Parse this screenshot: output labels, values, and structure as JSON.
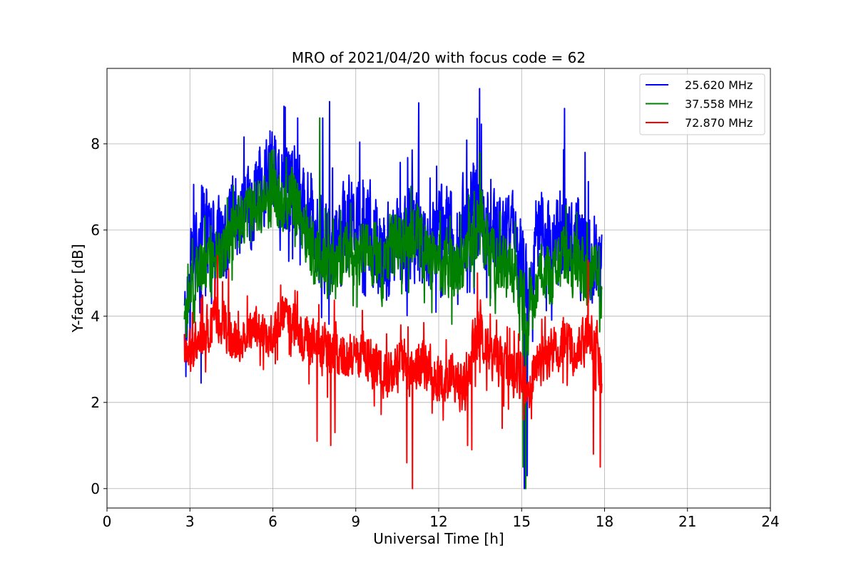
{
  "chart_data": {
    "type": "line",
    "title": "MRO of 2021/04/20 with focus code = 62",
    "xlabel": "Universal Time [h]",
    "ylabel": "Y-factor [dB]",
    "xlim": [
      0,
      24
    ],
    "ylim": [
      -0.45,
      9.75
    ],
    "xticks": [
      0,
      3,
      6,
      9,
      12,
      15,
      18,
      21,
      24
    ],
    "xtick_labels": [
      "0",
      "3",
      "6",
      "9",
      "12",
      "15",
      "18",
      "21",
      "24"
    ],
    "yticks": [
      0,
      2,
      4,
      6,
      8
    ],
    "ytick_labels": [
      "0",
      "2",
      "4",
      "6",
      "8"
    ],
    "grid": true,
    "legend_position": "top-right",
    "series": [
      {
        "name": "25.620 MHz",
        "color": "#0000ff",
        "x": [
          2.8,
          3.0,
          3.25,
          3.5,
          3.75,
          4.0,
          4.25,
          4.5,
          4.75,
          5.0,
          5.25,
          5.5,
          5.75,
          6.0,
          6.25,
          6.5,
          6.75,
          7.0,
          7.25,
          7.5,
          7.75,
          8.0,
          8.25,
          8.5,
          8.75,
          9.0,
          9.25,
          9.5,
          9.75,
          10.0,
          10.25,
          10.5,
          10.75,
          11.0,
          11.25,
          11.5,
          11.75,
          12.0,
          12.25,
          12.5,
          12.75,
          13.0,
          13.25,
          13.5,
          13.75,
          14.0,
          14.25,
          14.5,
          14.75,
          15.0,
          15.25,
          15.5,
          15.75,
          16.0,
          16.25,
          16.5,
          16.75,
          17.0,
          17.25,
          17.5,
          17.75,
          17.9
        ],
        "mid": [
          3.9,
          4.8,
          5.6,
          6.3,
          5.9,
          6.0,
          5.7,
          6.2,
          6.6,
          6.5,
          6.7,
          6.9,
          7.0,
          7.2,
          7.3,
          7.0,
          7.1,
          6.8,
          6.4,
          6.2,
          6.0,
          5.7,
          5.6,
          5.9,
          6.2,
          6.4,
          6.3,
          6.1,
          5.6,
          5.3,
          5.6,
          5.9,
          5.7,
          6.0,
          5.8,
          5.6,
          5.4,
          6.0,
          6.2,
          5.8,
          6.1,
          6.3,
          6.6,
          6.4,
          6.2,
          6.0,
          5.9,
          5.7,
          5.8,
          5.2,
          4.2,
          5.8,
          6.0,
          5.7,
          5.6,
          6.0,
          5.8,
          5.6,
          5.5,
          5.3,
          5.4,
          4.8
        ],
        "amp": [
          0.8,
          1.3,
          1.4,
          1.3,
          1.2,
          1.2,
          1.2,
          1.3,
          1.3,
          1.2,
          1.3,
          1.2,
          1.2,
          1.3,
          1.3,
          1.3,
          1.3,
          1.2,
          1.3,
          1.4,
          1.5,
          1.4,
          1.3,
          1.3,
          1.3,
          1.2,
          1.3,
          1.3,
          1.3,
          1.3,
          1.4,
          1.3,
          1.3,
          1.4,
          1.4,
          1.3,
          1.3,
          1.2,
          1.2,
          1.3,
          1.3,
          1.3,
          1.5,
          1.6,
          1.3,
          1.2,
          1.2,
          1.3,
          1.2,
          1.3,
          1.4,
          1.2,
          1.2,
          1.3,
          1.3,
          1.4,
          1.3,
          1.3,
          1.3,
          1.3,
          1.3,
          1.3
        ],
        "peaks": [
          [
            13.48,
            9.28
          ],
          [
            8.05,
            8.98
          ],
          [
            11.28,
            8.95
          ],
          [
            6.45,
            8.85
          ],
          [
            16.55,
            8.82
          ],
          [
            6.9,
            8.6
          ],
          [
            7.8,
            8.6
          ],
          [
            5.9,
            8.3
          ],
          [
            17.3,
            7.8
          ],
          [
            15.1,
            0.0
          ],
          [
            15.2,
            0.3
          ],
          [
            2.85,
            2.6
          ],
          [
            3.4,
            2.45
          ]
        ]
      },
      {
        "name": "37.558 MHz",
        "color": "#008000",
        "x": [
          2.8,
          3.0,
          3.25,
          3.5,
          3.75,
          4.0,
          4.25,
          4.5,
          4.75,
          5.0,
          5.25,
          5.5,
          5.75,
          6.0,
          6.25,
          6.5,
          6.75,
          7.0,
          7.25,
          7.5,
          7.75,
          8.0,
          8.25,
          8.5,
          8.75,
          9.0,
          9.25,
          9.5,
          9.75,
          10.0,
          10.25,
          10.5,
          10.75,
          11.0,
          11.25,
          11.5,
          11.75,
          12.0,
          12.25,
          12.5,
          12.75,
          13.0,
          13.25,
          13.5,
          13.75,
          14.0,
          14.25,
          14.5,
          14.75,
          15.0,
          15.25,
          15.5,
          15.75,
          16.0,
          16.25,
          16.5,
          16.75,
          17.0,
          17.25,
          17.5,
          17.75,
          17.9
        ],
        "mid": [
          3.6,
          4.7,
          5.0,
          5.3,
          5.0,
          5.4,
          5.5,
          5.9,
          6.1,
          6.3,
          6.4,
          6.5,
          6.6,
          6.8,
          6.7,
          6.6,
          6.8,
          6.3,
          5.8,
          5.5,
          5.4,
          5.2,
          5.0,
          5.3,
          5.5,
          5.3,
          5.4,
          5.6,
          5.4,
          5.0,
          5.6,
          5.8,
          5.7,
          5.8,
          5.9,
          5.5,
          5.3,
          5.2,
          5.3,
          5.0,
          5.1,
          5.3,
          6.0,
          6.2,
          5.6,
          5.3,
          5.2,
          5.1,
          5.0,
          4.5,
          3.6,
          4.8,
          5.0,
          4.9,
          5.2,
          5.4,
          5.3,
          5.2,
          5.0,
          4.9,
          5.2,
          4.5
        ],
        "amp": [
          0.6,
          0.7,
          0.8,
          0.8,
          0.8,
          0.8,
          0.8,
          0.8,
          0.8,
          0.8,
          0.8,
          0.8,
          0.8,
          0.8,
          0.8,
          0.8,
          0.8,
          0.8,
          0.9,
          0.9,
          0.9,
          0.9,
          0.9,
          0.9,
          0.9,
          0.8,
          0.9,
          0.9,
          0.9,
          0.9,
          0.9,
          0.9,
          0.9,
          0.9,
          0.9,
          0.9,
          0.9,
          0.9,
          0.9,
          0.9,
          0.9,
          0.9,
          1.0,
          1.1,
          0.9,
          0.9,
          0.9,
          0.9,
          0.9,
          0.9,
          1.0,
          0.9,
          0.9,
          0.9,
          0.9,
          0.9,
          0.9,
          0.9,
          0.9,
          0.9,
          0.9,
          0.9
        ],
        "peaks": [
          [
            7.7,
            8.6
          ],
          [
            13.5,
            7.8
          ],
          [
            15.15,
            0.0
          ],
          [
            15.05,
            0.5
          ]
        ]
      },
      {
        "name": "72.870 MHz",
        "color": "#ff0000",
        "x": [
          2.8,
          3.0,
          3.25,
          3.5,
          3.75,
          4.0,
          4.25,
          4.5,
          4.75,
          5.0,
          5.25,
          5.5,
          5.75,
          6.0,
          6.25,
          6.5,
          6.75,
          7.0,
          7.25,
          7.5,
          7.75,
          8.0,
          8.25,
          8.5,
          8.75,
          9.0,
          9.25,
          9.5,
          9.75,
          10.0,
          10.25,
          10.5,
          10.75,
          11.0,
          11.25,
          11.5,
          11.75,
          12.0,
          12.25,
          12.5,
          12.75,
          13.0,
          13.25,
          13.5,
          13.75,
          14.0,
          14.25,
          14.5,
          14.75,
          15.0,
          15.25,
          15.5,
          15.75,
          16.0,
          16.25,
          16.5,
          16.75,
          17.0,
          17.25,
          17.5,
          17.75,
          17.9
        ],
        "mid": [
          3.2,
          3.2,
          3.4,
          3.6,
          3.8,
          4.0,
          3.8,
          3.4,
          3.3,
          3.6,
          3.8,
          3.7,
          3.5,
          3.6,
          3.9,
          4.0,
          3.8,
          3.6,
          3.4,
          3.3,
          3.2,
          3.2,
          3.3,
          3.1,
          3.0,
          3.0,
          3.2,
          3.0,
          2.8,
          2.6,
          2.7,
          2.8,
          2.9,
          2.6,
          2.8,
          2.9,
          2.7,
          2.6,
          2.5,
          2.6,
          2.4,
          2.5,
          3.3,
          3.8,
          3.2,
          3.0,
          2.9,
          2.8,
          2.7,
          2.6,
          2.4,
          2.8,
          3.0,
          3.1,
          3.2,
          3.4,
          3.3,
          3.2,
          3.4,
          3.5,
          3.3,
          2.4
        ],
        "amp": [
          0.6,
          0.6,
          0.6,
          0.7,
          0.7,
          0.7,
          0.7,
          0.7,
          0.6,
          0.6,
          0.6,
          0.6,
          0.6,
          0.6,
          0.6,
          0.6,
          0.6,
          0.7,
          0.7,
          0.7,
          0.8,
          0.8,
          0.8,
          0.7,
          0.7,
          0.7,
          0.7,
          0.7,
          0.7,
          0.7,
          0.7,
          0.7,
          0.7,
          0.8,
          0.8,
          0.7,
          0.7,
          0.7,
          0.7,
          0.7,
          0.7,
          0.8,
          0.8,
          0.8,
          0.7,
          0.7,
          0.7,
          0.7,
          0.7,
          0.7,
          0.7,
          0.7,
          0.7,
          0.7,
          0.7,
          0.7,
          0.7,
          0.7,
          0.7,
          0.8,
          0.8,
          0.6
        ],
        "peaks": [
          [
            11.05,
            0.0
          ],
          [
            10.85,
            0.6
          ],
          [
            7.6,
            1.1
          ],
          [
            8.1,
            1.0
          ],
          [
            8.25,
            1.3
          ],
          [
            13.05,
            1.0
          ],
          [
            13.2,
            0.9
          ],
          [
            17.6,
            0.8
          ],
          [
            17.85,
            0.5
          ],
          [
            14.3,
            1.4
          ],
          [
            4.4,
            5.1
          ],
          [
            13.4,
            5.0
          ],
          [
            17.4,
            5.3
          ],
          [
            4.0,
            5.4
          ]
        ]
      }
    ]
  }
}
